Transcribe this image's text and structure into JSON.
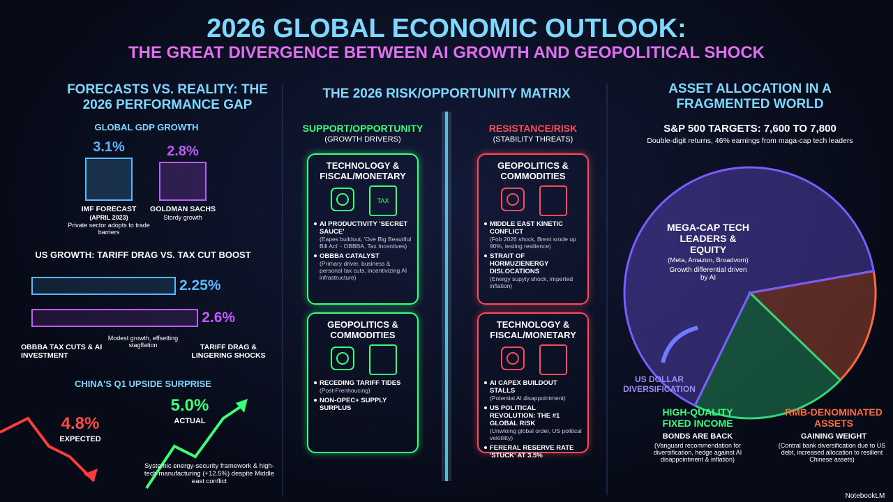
{
  "header": {
    "title": "2026 GLOBAL ECONOMIC OUTLOOK:",
    "subtitle": "THE GREAT DIVERGENCE BETWEEN AI GROWTH AND GEOPOLITICAL SHOCK"
  },
  "left": {
    "title": "FORECASTS VS. REALITY: THE 2026 PERFORMANCE GAP",
    "gdp": {
      "title": "GLOBAL GDP GROWTH",
      "bars": [
        {
          "value": 3.1,
          "value_label": "3.1%",
          "name": "IMF FORECAST",
          "sub": "(APRIL 2023)",
          "note": "Private sector adopts to trade barriers"
        },
        {
          "value": 2.8,
          "value_label": "2.8%",
          "name": "GOLDMAN SACHS",
          "note": "Stordy growth"
        }
      ]
    },
    "us": {
      "title": "US GROWTH: TARIFF DRAG VS. TAX CUT BOOST",
      "bars": [
        {
          "value": 2.25,
          "value_label": "2.25%"
        },
        {
          "value": 2.6,
          "value_label": "2.6%"
        }
      ],
      "left_label": "OBBBA TAX CUTS & AI INVESTMENT",
      "mid_label": "Modest growth, effsetting stagflation",
      "right_label": "TARIFF DRAG & LINGERING SHOCKS"
    },
    "china": {
      "title": "CHINA'S Q1 UPSIDE SURPRISE",
      "expected": {
        "value": 4.8,
        "value_label": "4.8%",
        "name": "EXPECTED"
      },
      "actual": {
        "value": 5.0,
        "value_label": "5.0%",
        "name": "ACTUAL"
      },
      "note": "Systemic energy-security framework & high-tech manufacturing (+12.5%) despite Middle east conflict"
    }
  },
  "matrix": {
    "title": "THE 2026 RISK/OPPORTUNITY MATRIX",
    "columns": [
      {
        "title": "SUPPORT/OPPORTUNITY",
        "subtitle": "(GROWTH DRIVERS)",
        "cards": [
          {
            "title": "TECHNOLOGY & FISCAL/MONETARY",
            "icon_text": "TAX",
            "bullets": [
              {
                "head": "AI PRODUCTIVITY 'SECRET SAUCE'",
                "detail": "(Eapes buildout, 'Ove Big Beautiful Bill Act' - OBBBA, Tax Incentives)"
              },
              {
                "head": "OBBBA CATALYST",
                "detail": "(Primary driver, business & personal tax cuts, incentivizing AI infrastructure)"
              }
            ]
          },
          {
            "title": "GEOPOLITICS & COMMODITIES",
            "bullets": [
              {
                "head": "RECEDING TARIFF TIDES",
                "detail": "(Post-Frenhoucing)"
              },
              {
                "head": "NON-OPEC+ SUPPLY SURPLUS"
              }
            ]
          }
        ]
      },
      {
        "title": "RESISTANCE/RISK",
        "subtitle": "(STABILITY THREATS)",
        "cards": [
          {
            "title": "GEOPOLITICS & COMMODITIES",
            "bullets": [
              {
                "head": "MIDDLE EAST KINETIC CONFLICT",
                "detail": "(Fob 2026 shock, Brent srode up 90%, testing resilience)"
              },
              {
                "head": "STRAIT OF HORMUZIENERGY DISLOCATIONS",
                "detail": "(Energy supyty shock, imperted inflation)"
              }
            ]
          },
          {
            "title": "TECHNOLOGY & FISCAL/MONETARY",
            "bullets": [
              {
                "head": "AI CAPEX BUILDOUT STALLS",
                "detail": "(Potential AI disappointment)"
              },
              {
                "head": "US POLITICAL REVOLUTION: THE #1 GLOBAL RISK",
                "detail": "(Unwloing global order, US political velotility)"
              },
              {
                "head": "FERERAL RESERVE RATE 'STUCK' AT 3.5%"
              }
            ]
          }
        ]
      }
    ]
  },
  "right": {
    "title": "ASSET ALLOCATION IN A FRAGMENTED WORLD",
    "targets": "S&P 500 TARGETS: 7,600 TO 7,800",
    "targets_note": "Double-digit returns, 46% earnings from maga-cap tech leaders",
    "segments": [
      {
        "name": "RMB-DENOMINATED ASSETS",
        "share": 15,
        "head": "GAINING WEIGHT",
        "note": "(Contral bank diversification due to US debt, increased allocation to resilient Chinese assets)",
        "color": "#ff6a3d"
      },
      {
        "name": "HIGH-QUALITY FIXED INCOME",
        "share": 20,
        "head": "BONDS ARE BACK",
        "note": "(Vanguard recommendation for diversification, hedge against AI disappointment & inflation)",
        "color": "#2fd67a"
      },
      {
        "name": "MEGA-CAP TECH LEADERS & EQUITY",
        "share": 65,
        "head": "(Meta, Amazon, Broadvom)",
        "note": "Growth differential driven by AI",
        "color": "#7b5cff"
      }
    ],
    "dollar": "US DOLLAR DIVERSIFICATION"
  },
  "footer": "NotebookLM"
}
